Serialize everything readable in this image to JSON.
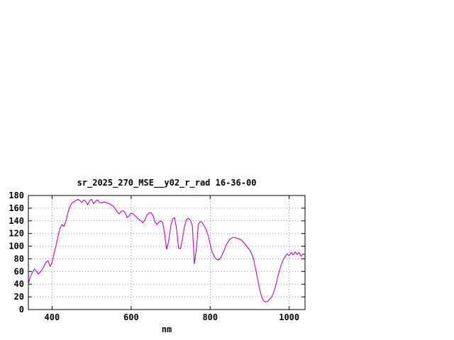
{
  "chart_data": {
    "type": "line",
    "title": "sr_2025_270_MSE__y02_r_rad 16-36-00",
    "xlabel": "nm",
    "ylabel": "",
    "xlim": [
      340,
      1040
    ],
    "ylim": [
      0,
      180
    ],
    "xticks": [
      400,
      600,
      800,
      1000
    ],
    "yticks": [
      0,
      20,
      40,
      60,
      80,
      100,
      120,
      140,
      160,
      180
    ],
    "grid": true,
    "legend": "none",
    "line_color": "#c000c0",
    "background_color": "#ffffff",
    "series": [
      {
        "name": "sr_2025_270_MSE__y02_r_rad",
        "points": [
          [
            340,
            40
          ],
          [
            345,
            52
          ],
          [
            350,
            58
          ],
          [
            355,
            64
          ],
          [
            360,
            61
          ],
          [
            365,
            56
          ],
          [
            370,
            59
          ],
          [
            375,
            63
          ],
          [
            380,
            69
          ],
          [
            385,
            75
          ],
          [
            390,
            77
          ],
          [
            395,
            68
          ],
          [
            400,
            74
          ],
          [
            405,
            88
          ],
          [
            410,
            101
          ],
          [
            415,
            116
          ],
          [
            420,
            128
          ],
          [
            425,
            134
          ],
          [
            430,
            131
          ],
          [
            435,
            139
          ],
          [
            440,
            153
          ],
          [
            445,
            162
          ],
          [
            450,
            168
          ],
          [
            455,
            170
          ],
          [
            460,
            172
          ],
          [
            465,
            174
          ],
          [
            470,
            172
          ],
          [
            475,
            169
          ],
          [
            480,
            173
          ],
          [
            485,
            171
          ],
          [
            490,
            165
          ],
          [
            495,
            172
          ],
          [
            500,
            174
          ],
          [
            505,
            167
          ],
          [
            510,
            171
          ],
          [
            515,
            173
          ],
          [
            520,
            169
          ],
          [
            525,
            168
          ],
          [
            530,
            170
          ],
          [
            535,
            169
          ],
          [
            540,
            168
          ],
          [
            545,
            167
          ],
          [
            550,
            165
          ],
          [
            555,
            163
          ],
          [
            560,
            159
          ],
          [
            565,
            154
          ],
          [
            570,
            151
          ],
          [
            575,
            155
          ],
          [
            580,
            156
          ],
          [
            585,
            153
          ],
          [
            590,
            145
          ],
          [
            595,
            148
          ],
          [
            600,
            152
          ],
          [
            605,
            151
          ],
          [
            610,
            148
          ],
          [
            615,
            145
          ],
          [
            620,
            142
          ],
          [
            625,
            140
          ],
          [
            630,
            137
          ],
          [
            635,
            142
          ],
          [
            640,
            149
          ],
          [
            645,
            152
          ],
          [
            650,
            153
          ],
          [
            655,
            149
          ],
          [
            660,
            139
          ],
          [
            665,
            134
          ],
          [
            670,
            138
          ],
          [
            675,
            140
          ],
          [
            680,
            137
          ],
          [
            685,
            118
          ],
          [
            690,
            95
          ],
          [
            695,
            108
          ],
          [
            700,
            131
          ],
          [
            705,
            143
          ],
          [
            710,
            145
          ],
          [
            715,
            128
          ],
          [
            720,
            97
          ],
          [
            725,
            96
          ],
          [
            730,
            112
          ],
          [
            735,
            131
          ],
          [
            740,
            142
          ],
          [
            745,
            144
          ],
          [
            750,
            141
          ],
          [
            755,
            132
          ],
          [
            760,
            72
          ],
          [
            765,
            95
          ],
          [
            770,
            134
          ],
          [
            775,
            139
          ],
          [
            780,
            137
          ],
          [
            785,
            132
          ],
          [
            790,
            126
          ],
          [
            795,
            117
          ],
          [
            800,
            103
          ],
          [
            805,
            91
          ],
          [
            810,
            84
          ],
          [
            815,
            80
          ],
          [
            820,
            78
          ],
          [
            825,
            80
          ],
          [
            830,
            86
          ],
          [
            835,
            93
          ],
          [
            840,
            101
          ],
          [
            845,
            107
          ],
          [
            850,
            111
          ],
          [
            855,
            113
          ],
          [
            860,
            114
          ],
          [
            865,
            113
          ],
          [
            870,
            112
          ],
          [
            875,
            111
          ],
          [
            880,
            109
          ],
          [
            885,
            106
          ],
          [
            890,
            102
          ],
          [
            895,
            98
          ],
          [
            900,
            94
          ],
          [
            905,
            88
          ],
          [
            910,
            79
          ],
          [
            915,
            64
          ],
          [
            920,
            49
          ],
          [
            925,
            33
          ],
          [
            930,
            21
          ],
          [
            935,
            14
          ],
          [
            940,
            12
          ],
          [
            945,
            13
          ],
          [
            950,
            16
          ],
          [
            955,
            19
          ],
          [
            960,
            26
          ],
          [
            965,
            36
          ],
          [
            970,
            49
          ],
          [
            975,
            61
          ],
          [
            980,
            71
          ],
          [
            985,
            79
          ],
          [
            990,
            84
          ],
          [
            995,
            88
          ],
          [
            1000,
            85
          ],
          [
            1005,
            90
          ],
          [
            1010,
            86
          ],
          [
            1015,
            91
          ],
          [
            1020,
            87
          ],
          [
            1025,
            90
          ],
          [
            1030,
            84
          ],
          [
            1035,
            88
          ],
          [
            1040,
            86
          ]
        ]
      }
    ]
  }
}
